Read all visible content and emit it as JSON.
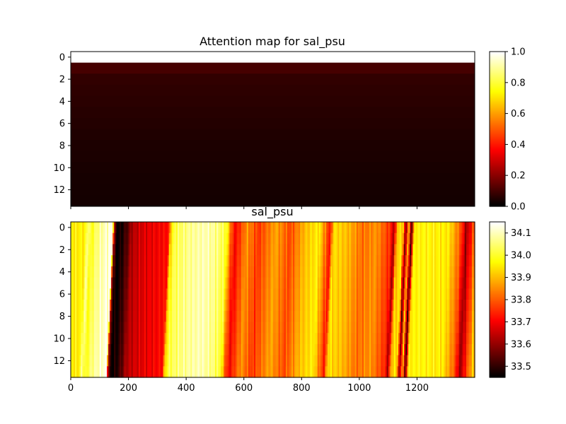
{
  "chart_data": [
    {
      "type": "heatmap",
      "title": "Attention map for sal_psu",
      "colormap": "hot",
      "ytick_labels": [
        "0",
        "2",
        "4",
        "6",
        "8",
        "10",
        "12"
      ],
      "y_ticks": [
        0,
        2,
        4,
        6,
        8,
        10,
        12
      ],
      "ylim": [
        13.5,
        -0.5
      ],
      "xlim": [
        0,
        1400
      ],
      "x_ticks": [
        0,
        200,
        400,
        600,
        800,
        1000,
        1200
      ],
      "row_values": [
        1.0,
        0.1,
        0.07,
        0.065,
        0.06,
        0.055,
        0.05,
        0.045,
        0.04,
        0.038,
        0.035,
        0.032,
        0.03,
        0.028
      ],
      "colorbar": {
        "vmin": 0.0,
        "vmax": 1.0,
        "ticks": [
          0.0,
          0.2,
          0.4,
          0.6,
          0.8,
          1.0
        ],
        "tick_labels": [
          "0.0",
          "0.2",
          "0.4",
          "0.6",
          "0.8",
          "1.0"
        ]
      }
    },
    {
      "type": "heatmap",
      "title": "sal_psu",
      "colormap": "hot",
      "ytick_labels": [
        "0",
        "2",
        "4",
        "6",
        "8",
        "10",
        "12"
      ],
      "y_ticks": [
        0,
        2,
        4,
        6,
        8,
        10,
        12
      ],
      "ylim": [
        13.5,
        -0.5
      ],
      "xlim": [
        0,
        1400
      ],
      "x_ticks": [
        0,
        200,
        400,
        600,
        800,
        1000,
        1200
      ],
      "xtick_labels": [
        "0",
        "200",
        "400",
        "600",
        "800",
        "1000",
        "1200"
      ],
      "row_tilt": 0.7,
      "column_profile": [
        [
          0,
          33.96
        ],
        [
          40,
          33.96
        ],
        [
          50,
          34.08
        ],
        [
          60,
          33.98
        ],
        [
          80,
          34.05
        ],
        [
          100,
          34.09
        ],
        [
          130,
          34.13
        ],
        [
          135,
          34.12
        ],
        [
          140,
          33.6
        ],
        [
          150,
          33.45
        ],
        [
          170,
          33.48
        ],
        [
          190,
          33.55
        ],
        [
          200,
          33.62
        ],
        [
          230,
          33.66
        ],
        [
          260,
          33.68
        ],
        [
          300,
          33.7
        ],
        [
          330,
          33.72
        ],
        [
          335,
          33.92
        ],
        [
          350,
          34.02
        ],
        [
          400,
          34.07
        ],
        [
          460,
          34.1
        ],
        [
          500,
          34.06
        ],
        [
          530,
          34.0
        ],
        [
          545,
          33.8
        ],
        [
          560,
          33.7
        ],
        [
          600,
          33.86
        ],
        [
          640,
          33.76
        ],
        [
          700,
          33.88
        ],
        [
          750,
          33.78
        ],
        [
          800,
          33.9
        ],
        [
          850,
          33.96
        ],
        [
          890,
          33.72
        ],
        [
          900,
          33.94
        ],
        [
          950,
          33.9
        ],
        [
          1000,
          33.82
        ],
        [
          1050,
          33.86
        ],
        [
          1100,
          33.74
        ],
        [
          1110,
          33.6
        ],
        [
          1120,
          33.9
        ],
        [
          1140,
          33.95
        ],
        [
          1150,
          33.55
        ],
        [
          1160,
          33.93
        ],
        [
          1170,
          33.5
        ],
        [
          1180,
          33.96
        ],
        [
          1220,
          33.97
        ],
        [
          1260,
          33.96
        ],
        [
          1300,
          33.95
        ],
        [
          1340,
          33.8
        ],
        [
          1360,
          33.6
        ],
        [
          1380,
          33.75
        ],
        [
          1400,
          33.9
        ]
      ],
      "colorbar": {
        "vmin": 33.45,
        "vmax": 34.15,
        "ticks": [
          33.5,
          33.6,
          33.7,
          33.8,
          33.9,
          34.0,
          34.1
        ],
        "tick_labels": [
          "33.5",
          "33.6",
          "33.7",
          "33.8",
          "33.9",
          "34.0",
          "34.1"
        ]
      }
    }
  ]
}
